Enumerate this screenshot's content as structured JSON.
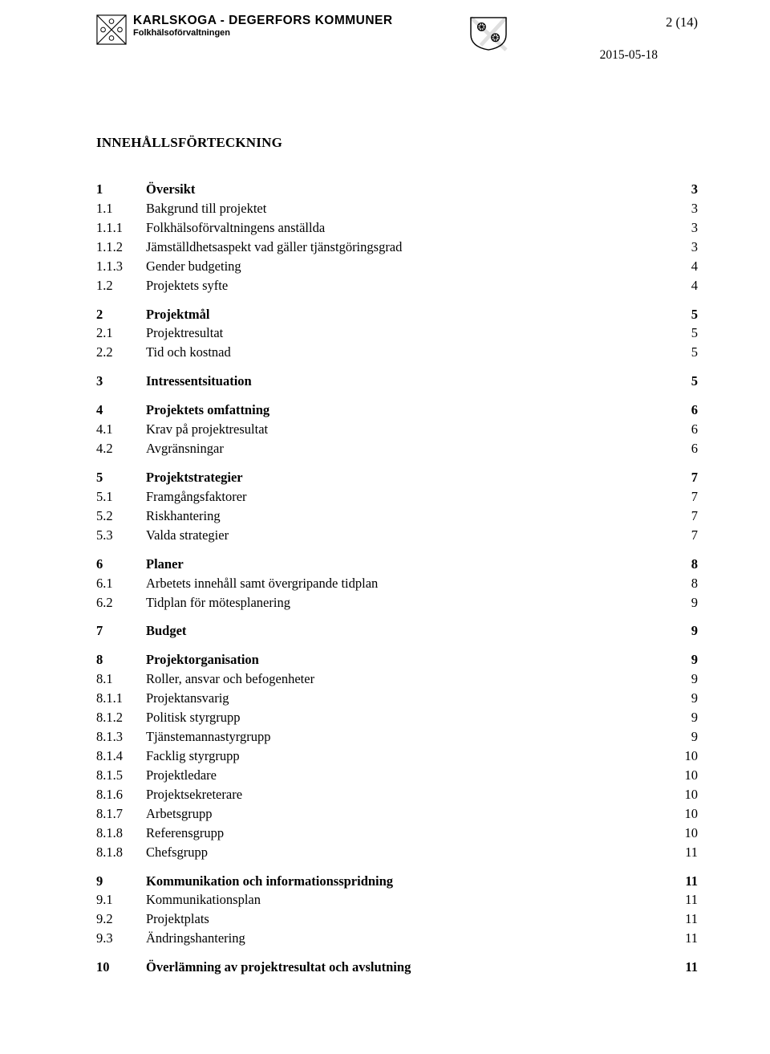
{
  "header": {
    "org_title": "KARLSKOGA - DEGERFORS KOMMUNER",
    "org_sub": "Folkhälsoförvaltningen",
    "page_indicator": "2 (14)",
    "date": "2015-05-18"
  },
  "toc_title": "INNEHÅLLSFÖRTECKNING",
  "toc": [
    {
      "rows": [
        {
          "num": "1",
          "label": "Översikt",
          "page": "3",
          "bold": true
        },
        {
          "num": "1.1",
          "label": "Bakgrund till projektet",
          "page": "3",
          "bold": false
        },
        {
          "num": "1.1.1",
          "label": "Folkhälsoförvaltningens anställda",
          "page": "3",
          "bold": false
        },
        {
          "num": "1.1.2",
          "label": "Jämställdhetsaspekt vad gäller tjänstgöringsgrad",
          "page": "3",
          "bold": false
        },
        {
          "num": "1.1.3",
          "label": "Gender budgeting",
          "page": "4",
          "bold": false
        },
        {
          "num": "1.2",
          "label": "Projektets syfte",
          "page": "4",
          "bold": false
        }
      ]
    },
    {
      "rows": [
        {
          "num": "2",
          "label": "Projektmål",
          "page": "5",
          "bold": true
        },
        {
          "num": "2.1",
          "label": "Projektresultat",
          "page": "5",
          "bold": false
        },
        {
          "num": "2.2",
          "label": "Tid och kostnad",
          "page": "5",
          "bold": false
        }
      ]
    },
    {
      "rows": [
        {
          "num": "3",
          "label": "Intressentsituation",
          "page": "5",
          "bold": true
        }
      ]
    },
    {
      "rows": [
        {
          "num": "4",
          "label": "Projektets omfattning",
          "page": "6",
          "bold": true
        },
        {
          "num": "4.1",
          "label": "Krav på projektresultat",
          "page": "6",
          "bold": false
        },
        {
          "num": "4.2",
          "label": "Avgränsningar",
          "page": "6",
          "bold": false
        }
      ]
    },
    {
      "rows": [
        {
          "num": "5",
          "label": "Projektstrategier",
          "page": "7",
          "bold": true
        },
        {
          "num": "5.1",
          "label": "Framgångsfaktorer",
          "page": "7",
          "bold": false
        },
        {
          "num": "5.2",
          "label": "Riskhantering",
          "page": "7",
          "bold": false
        },
        {
          "num": "5.3",
          "label": "Valda strategier",
          "page": "7",
          "bold": false
        }
      ]
    },
    {
      "rows": [
        {
          "num": "6",
          "label": "Planer",
          "page": "8",
          "bold": true
        },
        {
          "num": "6.1",
          "label": "Arbetets innehåll samt övergripande tidplan",
          "page": "8",
          "bold": false
        },
        {
          "num": "6.2",
          "label": "Tidplan för mötesplanering",
          "page": "9",
          "bold": false
        }
      ]
    },
    {
      "rows": [
        {
          "num": "7",
          "label": "Budget",
          "page": "9",
          "bold": true
        }
      ]
    },
    {
      "rows": [
        {
          "num": "8",
          "label": "Projektorganisation",
          "page": "9",
          "bold": true
        },
        {
          "num": "8.1",
          "label": "Roller, ansvar och befogenheter",
          "page": "9",
          "bold": false
        },
        {
          "num": "8.1.1",
          "label": "Projektansvarig",
          "page": "9",
          "bold": false
        },
        {
          "num": "8.1.2",
          "label": "Politisk styrgrupp",
          "page": "9",
          "bold": false
        },
        {
          "num": "8.1.3",
          "label": "Tjänstemannastyrgrupp",
          "page": "9",
          "bold": false
        },
        {
          "num": "8.1.4",
          "label": "Facklig styrgrupp",
          "page": "10",
          "bold": false
        },
        {
          "num": "8.1.5",
          "label": "Projektledare",
          "page": "10",
          "bold": false
        },
        {
          "num": "8.1.6",
          "label": "Projektsekreterare",
          "page": "10",
          "bold": false
        },
        {
          "num": "8.1.7",
          "label": "Arbetsgrupp",
          "page": "10",
          "bold": false
        },
        {
          "num": "8.1.8",
          "label": "Referensgrupp",
          "page": "10",
          "bold": false
        },
        {
          "num": "8.1.8",
          "label": "Chefsgrupp",
          "page": "11",
          "bold": false
        }
      ]
    },
    {
      "rows": [
        {
          "num": "9",
          "label": "Kommunikation och informationsspridning",
          "page": "11",
          "bold": true
        },
        {
          "num": "9.1",
          "label": "Kommunikationsplan",
          "page": "11",
          "bold": false
        },
        {
          "num": "9.2",
          "label": "Projektplats",
          "page": "11",
          "bold": false
        },
        {
          "num": "9.3",
          "label": "Ändringshantering",
          "page": "11",
          "bold": false
        }
      ]
    },
    {
      "rows": [
        {
          "num": "10",
          "label": "Överlämning av projektresultat och avslutning",
          "page": "11",
          "bold": true
        }
      ]
    }
  ]
}
